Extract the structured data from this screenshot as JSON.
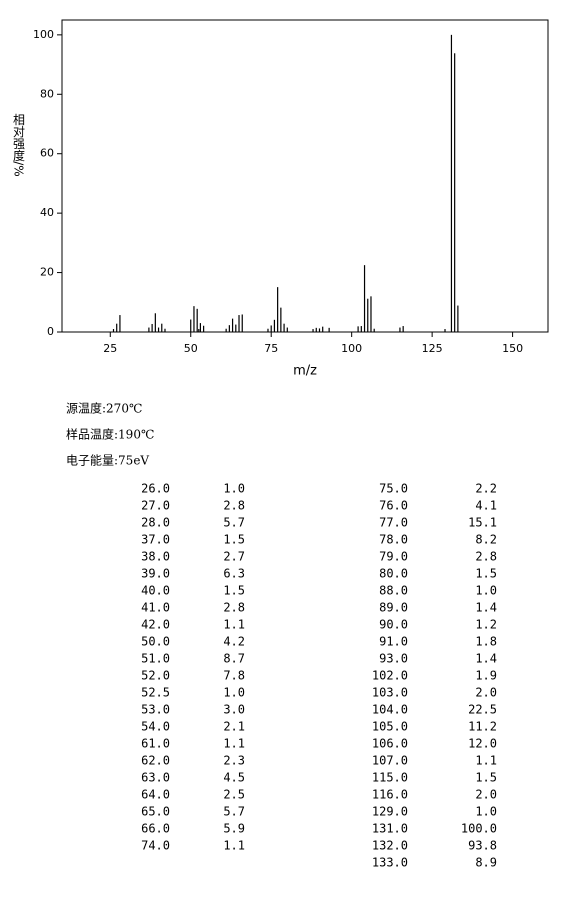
{
  "chart_data": {
    "type": "bar",
    "x_label": "m/z",
    "y_label": "相对强度/%",
    "x": [
      26,
      27,
      28,
      37,
      38,
      39,
      40,
      41,
      42,
      50,
      51,
      52,
      52.5,
      53,
      54,
      61,
      62,
      63,
      64,
      65,
      66,
      74,
      75,
      76,
      77,
      78,
      79,
      80,
      88,
      89,
      90,
      91,
      93,
      102,
      103,
      104,
      105,
      106,
      107,
      115,
      116,
      129,
      131,
      132,
      133
    ],
    "values": [
      1.0,
      2.8,
      5.7,
      1.5,
      2.7,
      6.3,
      1.5,
      2.8,
      1.1,
      4.2,
      8.7,
      7.8,
      1.0,
      3.0,
      2.1,
      1.1,
      2.3,
      4.5,
      2.5,
      5.7,
      5.9,
      1.1,
      2.2,
      4.1,
      15.1,
      8.2,
      2.8,
      1.5,
      1.0,
      1.4,
      1.2,
      1.8,
      1.4,
      1.9,
      2.0,
      22.5,
      11.2,
      12.0,
      1.1,
      1.5,
      2.0,
      1.0,
      100.0,
      93.8,
      8.9
    ],
    "color": "#000000",
    "xlim": [
      10,
      161
    ],
    "ylim": [
      0,
      105
    ],
    "xticks": [
      25,
      50,
      75,
      100,
      125,
      150
    ],
    "yticks": [
      0,
      20,
      40,
      60,
      80,
      100
    ]
  },
  "conditions": [
    "源温度:270℃",
    "样品温度:190℃",
    "电子能量:75eV"
  ],
  "table": {
    "left": [
      [
        "26.0",
        "1.0"
      ],
      [
        "27.0",
        "2.8"
      ],
      [
        "28.0",
        "5.7"
      ],
      [
        "37.0",
        "1.5"
      ],
      [
        "38.0",
        "2.7"
      ],
      [
        "39.0",
        "6.3"
      ],
      [
        "40.0",
        "1.5"
      ],
      [
        "41.0",
        "2.8"
      ],
      [
        "42.0",
        "1.1"
      ],
      [
        "50.0",
        "4.2"
      ],
      [
        "51.0",
        "8.7"
      ],
      [
        "52.0",
        "7.8"
      ],
      [
        "52.5",
        "1.0"
      ],
      [
        "53.0",
        "3.0"
      ],
      [
        "54.0",
        "2.1"
      ],
      [
        "61.0",
        "1.1"
      ],
      [
        "62.0",
        "2.3"
      ],
      [
        "63.0",
        "4.5"
      ],
      [
        "64.0",
        "2.5"
      ],
      [
        "65.0",
        "5.7"
      ],
      [
        "66.0",
        "5.9"
      ],
      [
        "74.0",
        "1.1"
      ]
    ],
    "right": [
      [
        "75.0",
        "2.2"
      ],
      [
        "76.0",
        "4.1"
      ],
      [
        "77.0",
        "15.1"
      ],
      [
        "78.0",
        "8.2"
      ],
      [
        "79.0",
        "2.8"
      ],
      [
        "80.0",
        "1.5"
      ],
      [
        "88.0",
        "1.0"
      ],
      [
        "89.0",
        "1.4"
      ],
      [
        "90.0",
        "1.2"
      ],
      [
        "91.0",
        "1.8"
      ],
      [
        "93.0",
        "1.4"
      ],
      [
        "102.0",
        "1.9"
      ],
      [
        "103.0",
        "2.0"
      ],
      [
        "104.0",
        "22.5"
      ],
      [
        "105.0",
        "11.2"
      ],
      [
        "106.0",
        "12.0"
      ],
      [
        "107.0",
        "1.1"
      ],
      [
        "115.0",
        "1.5"
      ],
      [
        "116.0",
        "2.0"
      ],
      [
        "129.0",
        "1.0"
      ],
      [
        "131.0",
        "100.0"
      ],
      [
        "132.0",
        "93.8"
      ],
      [
        "133.0",
        "8.9"
      ]
    ]
  }
}
